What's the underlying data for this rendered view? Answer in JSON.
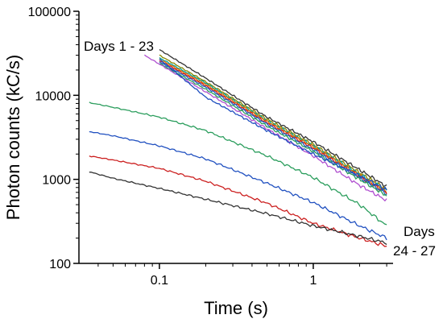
{
  "chart_data": {
    "type": "line",
    "title": "",
    "xlabel": "Time (s)",
    "ylabel": "Photon counts (kC/s)",
    "x_scale": "log",
    "y_scale": "log",
    "xlim": [
      0.03,
      3.3
    ],
    "ylim": [
      100,
      100000
    ],
    "x_ticks": [
      0.1,
      1
    ],
    "x_tick_labels": [
      "0.1",
      "1"
    ],
    "y_ticks": [
      100,
      1000,
      10000,
      100000
    ],
    "y_tick_labels": [
      "100",
      "1000",
      "10000",
      "100000"
    ],
    "grid": false,
    "legend": "none",
    "annotations": [
      {
        "lines": [
          "Days 1 - 23"
        ],
        "near": "top-left of upper curve bundle"
      },
      {
        "lines": [
          "Days",
          "24 - 27"
        ],
        "near": "right end of lower curves"
      }
    ],
    "series": [
      {
        "color": "#333333",
        "x": [
          0.1,
          0.2,
          0.5,
          1,
          2,
          3
        ],
        "y": [
          35000,
          16000,
          5500,
          2800,
          1300,
          820
        ]
      },
      {
        "color": "#888800",
        "x": [
          0.1,
          0.2,
          0.5,
          1,
          2,
          3
        ],
        "y": [
          30000,
          14500,
          5200,
          2600,
          1200,
          760
        ]
      },
      {
        "color": "#00a0a0",
        "x": [
          0.1,
          0.2,
          0.5,
          1,
          2,
          3
        ],
        "y": [
          28000,
          14000,
          5000,
          2500,
          1150,
          730
        ]
      },
      {
        "color": "#e07000",
        "x": [
          0.1,
          0.2,
          0.5,
          1,
          2,
          3
        ],
        "y": [
          27000,
          13500,
          4900,
          2450,
          1120,
          710
        ]
      },
      {
        "color": "#cc2020",
        "x": [
          0.1,
          0.2,
          0.5,
          1,
          2,
          3
        ],
        "y": [
          26000,
          13000,
          4700,
          2350,
          1080,
          690
        ]
      },
      {
        "color": "#1f60c0",
        "x": [
          0.1,
          0.2,
          0.5,
          1,
          2,
          3
        ],
        "y": [
          25000,
          12500,
          4550,
          2250,
          1050,
          670
        ]
      },
      {
        "color": "#2a9d5c",
        "x": [
          0.1,
          0.2,
          0.5,
          1,
          2,
          3
        ],
        "y": [
          24000,
          11800,
          4300,
          2150,
          1000,
          640
        ]
      },
      {
        "color": "#b050d0",
        "x": [
          0.08,
          0.2,
          0.5,
          1,
          2,
          3
        ],
        "y": [
          30000,
          11000,
          4000,
          1900,
          850,
          560
        ]
      },
      {
        "color": "#2050c0",
        "x": [
          0.1,
          0.2,
          0.5,
          1,
          2,
          3
        ],
        "y": [
          27000,
          9500,
          3800,
          2000,
          1100,
          750
        ]
      },
      {
        "color": "#2a9d5c",
        "x": [
          0.035,
          0.05,
          0.1,
          0.2,
          0.5,
          1,
          2,
          3
        ],
        "y": [
          8200,
          7200,
          5500,
          3800,
          1900,
          1050,
          500,
          280
        ]
      },
      {
        "color": "#2050c0",
        "x": [
          0.035,
          0.05,
          0.1,
          0.2,
          0.5,
          1,
          2,
          3
        ],
        "y": [
          3700,
          3300,
          2500,
          1750,
          900,
          530,
          280,
          200
        ]
      },
      {
        "color": "#cc2020",
        "x": [
          0.035,
          0.05,
          0.1,
          0.2,
          0.5,
          1,
          2,
          3
        ],
        "y": [
          1900,
          1700,
          1350,
          950,
          520,
          300,
          200,
          160
        ]
      },
      {
        "color": "#333333",
        "x": [
          0.035,
          0.05,
          0.1,
          0.2,
          0.5,
          1,
          2,
          3
        ],
        "y": [
          1230,
          1030,
          780,
          580,
          390,
          280,
          210,
          175
        ]
      }
    ]
  }
}
